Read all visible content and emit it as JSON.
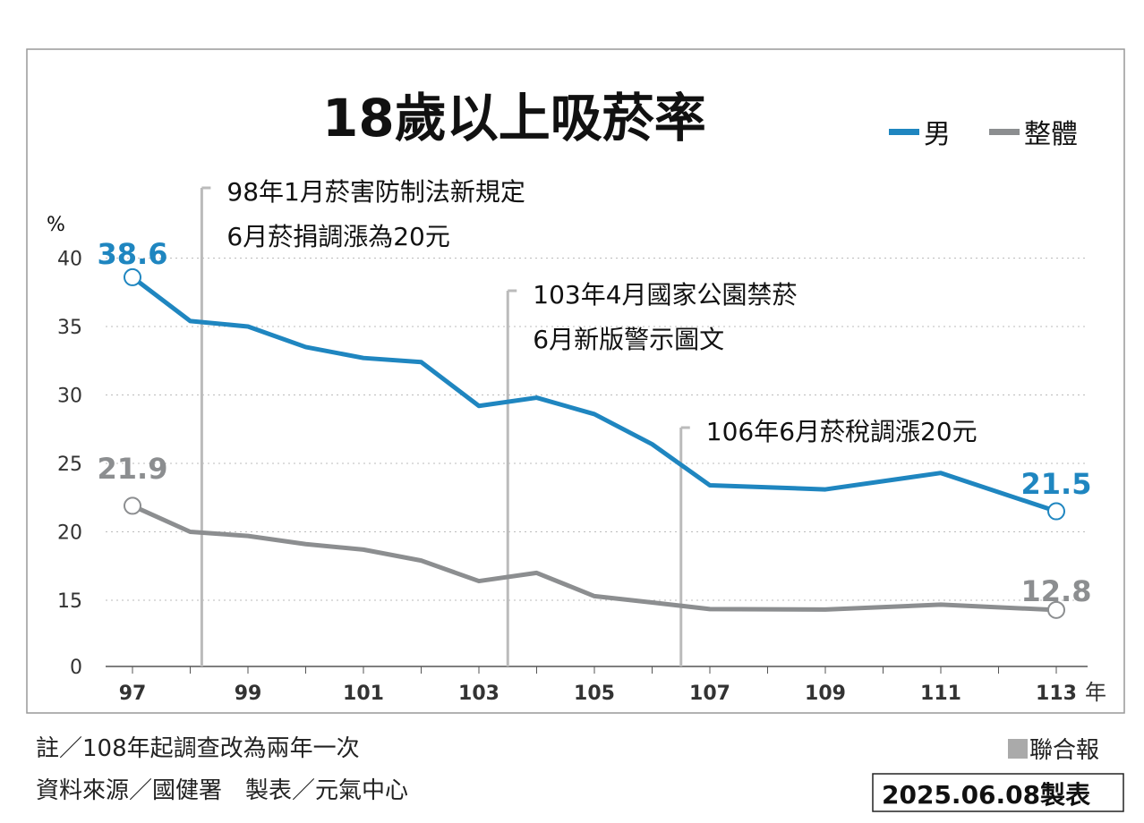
{
  "chart_data": {
    "type": "line",
    "title": "18歲以上吸菸率",
    "ylabel": "%",
    "xlabel": "年",
    "ylim": [
      0,
      40
    ],
    "y_ticks": [
      0,
      15,
      20,
      25,
      30,
      35,
      40
    ],
    "x": [
      97,
      98,
      99,
      100,
      101,
      102,
      103,
      104,
      105,
      106,
      107,
      109,
      111,
      113
    ],
    "x_tick_labels": [
      "97",
      "99",
      "101",
      "103",
      "105",
      "107",
      "109",
      "111",
      "113"
    ],
    "grid": true,
    "legend_position": "top-right",
    "series": [
      {
        "name": "男",
        "color": "#1f86c0",
        "values": [
          38.6,
          35.4,
          35.0,
          33.5,
          32.7,
          32.4,
          29.2,
          29.8,
          28.6,
          26.4,
          23.4,
          23.1,
          24.3,
          21.5
        ],
        "end_labels": [
          "38.6",
          "21.5"
        ]
      },
      {
        "name": "整體",
        "color": "#8c8e90",
        "values": [
          21.9,
          20.0,
          19.7,
          19.1,
          18.7,
          17.9,
          16.4,
          17.0,
          15.3,
          14.5,
          13.0,
          12.9,
          14.0,
          12.8
        ],
        "end_labels": [
          "21.9",
          "12.8"
        ]
      }
    ],
    "annotations": [
      {
        "x": 98.2,
        "lines": [
          "98年1月菸害防制法新規定",
          "6月菸捐調漲為20元"
        ]
      },
      {
        "x": 103.5,
        "lines": [
          "103年4月國家公園禁菸",
          "6月新版警示圖文"
        ]
      },
      {
        "x": 106.5,
        "lines": [
          "106年6月菸稅調漲20元"
        ]
      }
    ]
  },
  "footer": {
    "note": "註／108年起調查改為兩年一次",
    "source": "資料來源／國健署　製表／元氣中心",
    "publisher": "聯合報",
    "date": "2025.06.08製表"
  }
}
